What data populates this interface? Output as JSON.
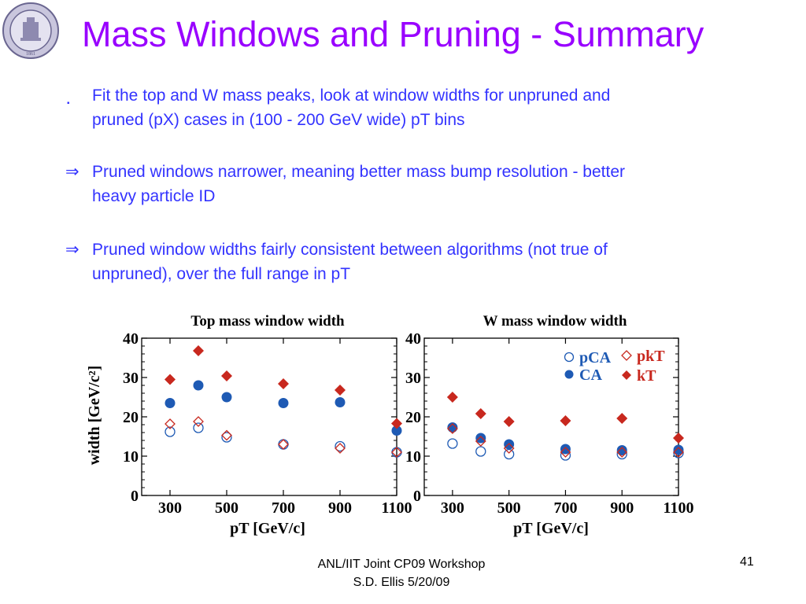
{
  "title": "Mass Windows and Pruning - Summary",
  "colors": {
    "title": "#9900ff",
    "body_text": "#3333ff",
    "pruned_marker": "#1e5ab4",
    "unpruned_marker": "#c8281e"
  },
  "logo": {
    "name": "university-seal",
    "text": "UNIVERSITY OF WASHINGTON 1861"
  },
  "bullets": [
    {
      "marker": "▪",
      "text_line1": "Fit the top and W mass peaks, look at window widths for unpruned and",
      "text_line2": "pruned (pX) cases in (100 - 200 GeV wide) pT bins"
    },
    {
      "marker": "⇒",
      "text_line1": "Pruned windows narrower, meaning better mass bump resolution - better",
      "text_line2": "heavy particle ID"
    },
    {
      "marker": "⇒",
      "text_line1": "Pruned window widths fairly consistent between algorithms (not true of",
      "text_line2": "unpruned), over the full range in pT"
    }
  ],
  "chart_data": [
    {
      "type": "scatter",
      "title": "Top mass window width",
      "ylabel": "width [GeV/c²]",
      "xlabel": "pT [GeV/c]",
      "ylim": [
        0,
        40
      ],
      "xlim": [
        200,
        1100
      ],
      "yticks": [
        0,
        10,
        20,
        30,
        40
      ],
      "xticks": [
        300,
        500,
        700,
        900,
        1100
      ],
      "legend": null,
      "series": [
        {
          "name": "pCA",
          "marker": "open-circle",
          "color": "#1e5ab4",
          "x": [
            300,
            400,
            500,
            700,
            900,
            1100
          ],
          "y": [
            16.2,
            17.2,
            14.8,
            13.0,
            12.5,
            11.0
          ]
        },
        {
          "name": "CA",
          "marker": "filled-circle",
          "color": "#1e5ab4",
          "x": [
            300,
            400,
            500,
            700,
            900,
            1100
          ],
          "y": [
            23.5,
            28.0,
            25.0,
            23.5,
            23.7,
            16.5
          ]
        },
        {
          "name": "pkT",
          "marker": "open-diamond",
          "color": "#c8281e",
          "x": [
            300,
            400,
            500,
            700,
            900,
            1100
          ],
          "y": [
            18.2,
            18.8,
            15.3,
            13.0,
            12.0,
            11.0
          ]
        },
        {
          "name": "kT",
          "marker": "filled-diamond",
          "color": "#c8281e",
          "x": [
            300,
            400,
            500,
            700,
            900,
            1100
          ],
          "y": [
            29.5,
            36.8,
            30.4,
            28.4,
            26.8,
            18.3
          ]
        }
      ]
    },
    {
      "type": "scatter",
      "title": "W mass window width",
      "ylabel": "",
      "xlabel": "pT [GeV/c]",
      "ylim": [
        0,
        40
      ],
      "xlim": [
        200,
        1100
      ],
      "yticks": [
        0,
        10,
        20,
        30,
        40
      ],
      "xticks": [
        300,
        500,
        700,
        900,
        1100
      ],
      "legend": "top-right",
      "series": [
        {
          "name": "pCA",
          "marker": "open-circle",
          "color": "#1e5ab4",
          "x": [
            300,
            400,
            500,
            700,
            900,
            1100
          ],
          "y": [
            13.2,
            11.2,
            10.5,
            10.2,
            10.5,
            10.8
          ]
        },
        {
          "name": "CA",
          "marker": "filled-circle",
          "color": "#1e5ab4",
          "x": [
            300,
            400,
            500,
            700,
            900,
            1100
          ],
          "y": [
            17.3,
            14.6,
            13.0,
            11.8,
            11.5,
            11.6
          ]
        },
        {
          "name": "pkT",
          "marker": "open-diamond",
          "color": "#c8281e",
          "x": [
            300,
            400,
            500,
            700,
            900,
            1100
          ],
          "y": [
            17.0,
            13.8,
            12.0,
            11.0,
            11.0,
            11.0
          ]
        },
        {
          "name": "kT",
          "marker": "filled-diamond",
          "color": "#c8281e",
          "x": [
            300,
            400,
            500,
            700,
            900,
            1100
          ],
          "y": [
            25.0,
            20.8,
            18.8,
            19.0,
            19.6,
            14.6
          ]
        }
      ]
    }
  ],
  "footer": {
    "line1": "ANL/IIT Joint CP09 Workshop",
    "line2": "S.D. Ellis 5/20/09",
    "page": "41"
  }
}
